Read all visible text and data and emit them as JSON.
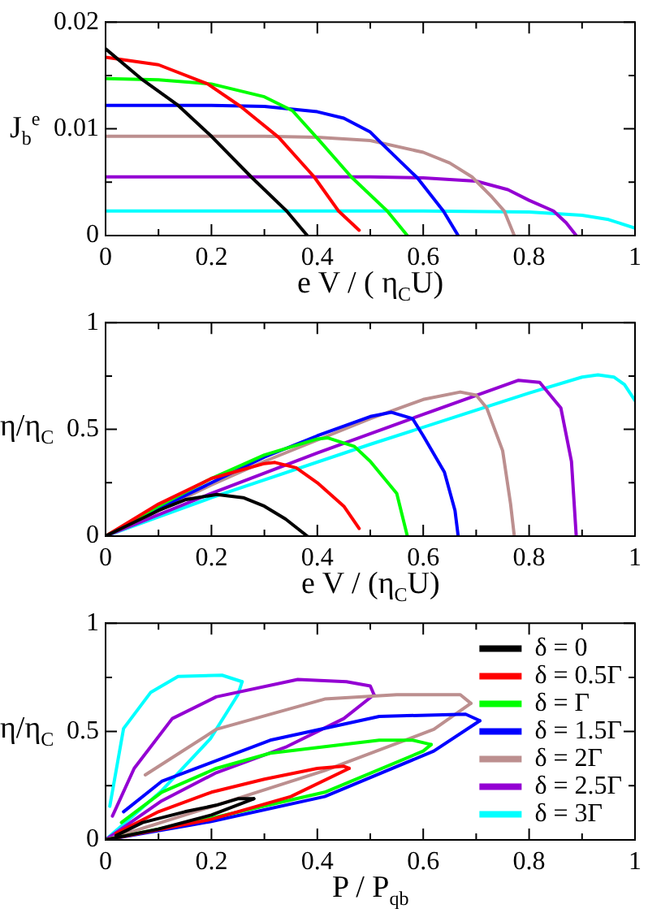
{
  "chart_data": [
    {
      "type": "line",
      "xlabel": "e V / ( η$_{C}$U)",
      "ylabel": "J$_{b}$$^{e}$",
      "xlim": [
        0,
        1
      ],
      "ylim": [
        0,
        0.02
      ],
      "xticks": [
        0,
        {
          "value": 0.1,
          "label": null
        },
        0.2,
        {
          "value": 0.3,
          "label": null
        },
        0.4,
        {
          "value": 0.5,
          "label": null
        },
        0.6,
        {
          "value": 0.7,
          "label": null
        },
        0.8,
        {
          "value": 0.9,
          "label": null
        },
        1
      ],
      "yticks": [
        0,
        {
          "value": 0.005,
          "label": null
        },
        0.01,
        {
          "value": 0.015,
          "label": null
        },
        0.02
      ],
      "grid": false,
      "legend": false,
      "series": [
        {
          "color": "#000000",
          "x": [
            0,
            0.067,
            0.137,
            0.2,
            0.275,
            0.342,
            0.381
          ],
          "values": [
            0.0175,
            0.0147,
            0.0122,
            0.0093,
            0.0055,
            0.0023,
            0
          ]
        },
        {
          "color": "#ff0000",
          "x": [
            0,
            0.1,
            0.193,
            0.255,
            0.327,
            0.394,
            0.44,
            0.479
          ],
          "values": [
            0.0167,
            0.016,
            0.0142,
            0.0121,
            0.0092,
            0.0055,
            0.0023,
            0.0005
          ]
        },
        {
          "color": "#00ff00",
          "x": [
            0,
            0.1,
            0.2,
            0.3,
            0.353,
            0.404,
            0.464,
            0.532,
            0.57
          ],
          "values": [
            0.0147,
            0.0146,
            0.0142,
            0.013,
            0.0117,
            0.0089,
            0.0055,
            0.0023,
            0
          ]
        },
        {
          "color": "#0000ff",
          "x": [
            0,
            0.2,
            0.3,
            0.4,
            0.45,
            0.5,
            0.52,
            0.589,
            0.638,
            0.666
          ],
          "values": [
            0.0122,
            0.0122,
            0.0121,
            0.0116,
            0.011,
            0.0097,
            0.0087,
            0.0054,
            0.0023,
            0
          ]
        },
        {
          "color": "#bc8f8f",
          "x": [
            0,
            0.3,
            0.4,
            0.5,
            0.6,
            0.65,
            0.692,
            0.73,
            0.753,
            0.772
          ],
          "values": [
            0.0093,
            0.0093,
            0.0092,
            0.0089,
            0.0078,
            0.0068,
            0.0055,
            0.0036,
            0.0023,
            0
          ]
        },
        {
          "color": "#9400d3",
          "x": [
            0,
            0.5,
            0.6,
            0.7,
            0.76,
            0.8,
            0.846,
            0.87,
            0.889
          ],
          "values": [
            0.0055,
            0.0055,
            0.0054,
            0.0051,
            0.0043,
            0.0033,
            0.0023,
            0.0012,
            0
          ]
        },
        {
          "color": "#00ffff",
          "x": [
            0,
            0.6,
            0.8,
            0.9,
            0.95,
            1
          ],
          "values": [
            0.0023,
            0.0023,
            0.0022,
            0.0019,
            0.0015,
            0.0007
          ]
        }
      ]
    },
    {
      "type": "line",
      "xlabel": "e V / (η$_{C}$U)",
      "ylabel": "η/η$_{C}$",
      "xlim": [
        0,
        1
      ],
      "ylim": [
        0,
        1
      ],
      "xticks": [
        0,
        {
          "value": 0.1,
          "label": null
        },
        0.2,
        {
          "value": 0.3,
          "label": null
        },
        0.4,
        {
          "value": 0.5,
          "label": null
        },
        0.6,
        {
          "value": 0.7,
          "label": null
        },
        0.8,
        {
          "value": 0.9,
          "label": null
        },
        1
      ],
      "yticks": [
        0,
        {
          "value": 0.25,
          "label": null
        },
        0.5,
        {
          "value": 0.75,
          "label": null
        },
        1
      ],
      "grid": false,
      "legend": false,
      "series": [
        {
          "color": "#000000",
          "x": [
            0,
            0.05,
            0.1,
            0.15,
            0.21,
            0.26,
            0.3,
            0.34,
            0.381
          ],
          "values": [
            0,
            0.06,
            0.12,
            0.17,
            0.195,
            0.18,
            0.14,
            0.08,
            0
          ]
        },
        {
          "color": "#ff0000",
          "x": [
            0,
            0.1,
            0.2,
            0.3,
            0.32,
            0.36,
            0.4,
            0.45,
            0.479
          ],
          "values": [
            0,
            0.15,
            0.27,
            0.34,
            0.345,
            0.32,
            0.25,
            0.14,
            0.036
          ]
        },
        {
          "color": "#00ff00",
          "x": [
            0,
            0.1,
            0.2,
            0.3,
            0.4,
            0.42,
            0.47,
            0.5,
            0.55,
            0.57
          ],
          "values": [
            0,
            0.14,
            0.27,
            0.38,
            0.455,
            0.46,
            0.42,
            0.35,
            0.2,
            0
          ]
        },
        {
          "color": "#0000ff",
          "x": [
            0,
            0.1,
            0.2,
            0.3,
            0.4,
            0.5,
            0.54,
            0.58,
            0.6,
            0.64,
            0.66,
            0.666
          ],
          "values": [
            0,
            0.13,
            0.25,
            0.37,
            0.47,
            0.56,
            0.58,
            0.55,
            0.47,
            0.3,
            0.12,
            0
          ]
        },
        {
          "color": "#bc8f8f",
          "x": [
            0,
            0.1,
            0.2,
            0.3,
            0.4,
            0.5,
            0.6,
            0.67,
            0.7,
            0.72,
            0.75,
            0.765,
            0.772
          ],
          "values": [
            0,
            0.12,
            0.24,
            0.35,
            0.45,
            0.55,
            0.64,
            0.675,
            0.66,
            0.6,
            0.4,
            0.15,
            0
          ]
        },
        {
          "color": "#9400d3",
          "x": [
            0,
            0.2,
            0.4,
            0.6,
            0.78,
            0.82,
            0.86,
            0.88,
            0.889
          ],
          "values": [
            0,
            0.2,
            0.39,
            0.57,
            0.73,
            0.72,
            0.6,
            0.35,
            0
          ]
        },
        {
          "color": "#00ffff",
          "x": [
            0,
            0.2,
            0.5,
            0.8,
            0.9,
            0.93,
            0.96,
            0.98,
            1
          ],
          "values": [
            0,
            0.18,
            0.43,
            0.67,
            0.745,
            0.755,
            0.745,
            0.71,
            0.635
          ]
        }
      ]
    },
    {
      "type": "line",
      "xlabel": "P / P$_{qb}$",
      "ylabel": "η/η$_{C}$",
      "xlim": [
        0,
        1
      ],
      "ylim": [
        0,
        1
      ],
      "xticks": [
        0,
        {
          "value": 0.1,
          "label": null
        },
        0.2,
        {
          "value": 0.3,
          "label": null
        },
        0.4,
        {
          "value": 0.5,
          "label": null
        },
        0.6,
        {
          "value": 0.7,
          "label": null
        },
        0.8,
        {
          "value": 0.9,
          "label": null
        },
        1
      ],
      "yticks": [
        0,
        {
          "value": 0.25,
          "label": null
        },
        0.5,
        {
          "value": 0.75,
          "label": null
        },
        1
      ],
      "grid": false,
      "legend": "right",
      "series": [
        {
          "name": "δ = 0",
          "color": "#000000",
          "x": [
            0,
            0.1,
            0.2,
            0.28
          ],
          "values": [
            0,
            0.05,
            0.115,
            0.19
          ]
        },
        {
          "color": "#000000",
          "x": [
            0.02,
            0.07,
            0.15,
            0.209,
            0.25,
            0.28
          ],
          "values": [
            0.02,
            0.08,
            0.13,
            0.16,
            0.19,
            0.19
          ]
        },
        {
          "name": "δ = 0.5Γ",
          "color": "#ff0000",
          "x": [
            0,
            0.2,
            0.35,
            0.46
          ],
          "values": [
            0,
            0.095,
            0.2,
            0.33
          ]
        },
        {
          "color": "#ff0000",
          "x": [
            0.02,
            0.1,
            0.2,
            0.3,
            0.4,
            0.45,
            0.46
          ],
          "values": [
            0.03,
            0.13,
            0.22,
            0.28,
            0.33,
            0.34,
            0.33
          ]
        },
        {
          "name": "δ = Γ",
          "color": "#00ff00",
          "x": [
            0,
            0.2,
            0.414,
            0.6,
            0.615
          ],
          "values": [
            0,
            0.1,
            0.22,
            0.41,
            0.44
          ]
        },
        {
          "color": "#00ff00",
          "x": [
            0.03,
            0.106,
            0.209,
            0.311,
            0.517,
            0.58,
            0.615
          ],
          "values": [
            0.08,
            0.22,
            0.33,
            0.4,
            0.46,
            0.46,
            0.44
          ]
        },
        {
          "name": "δ = 1.5Γ",
          "color": "#0000ff",
          "x": [
            0,
            0.2,
            0.414,
            0.62,
            0.707
          ],
          "values": [
            0,
            0.085,
            0.2,
            0.41,
            0.55
          ]
        },
        {
          "color": "#0000ff",
          "x": [
            0.034,
            0.106,
            0.311,
            0.517,
            0.68,
            0.707
          ],
          "values": [
            0.13,
            0.27,
            0.46,
            0.57,
            0.58,
            0.55
          ]
        },
        {
          "name": "δ = 2Γ",
          "color": "#bc8f8f",
          "x": [
            0,
            0.209,
            0.414,
            0.62,
            0.69
          ],
          "values": [
            0,
            0.16,
            0.32,
            0.51,
            0.63
          ]
        },
        {
          "color": "#bc8f8f",
          "x": [
            0.075,
            0.209,
            0.414,
            0.55,
            0.67,
            0.69
          ],
          "values": [
            0.3,
            0.51,
            0.65,
            0.67,
            0.67,
            0.63
          ]
        },
        {
          "name": "δ = 2.5Γ",
          "color": "#9400d3",
          "x": [
            0,
            0.106,
            0.209,
            0.342,
            0.45,
            0.507
          ],
          "values": [
            0,
            0.18,
            0.31,
            0.43,
            0.56,
            0.67
          ]
        },
        {
          "color": "#9400d3",
          "x": [
            0.013,
            0.054,
            0.126,
            0.209,
            0.363,
            0.455,
            0.5,
            0.507
          ],
          "values": [
            0.11,
            0.33,
            0.56,
            0.66,
            0.74,
            0.73,
            0.71,
            0.67
          ]
        },
        {
          "name": "δ = 3Γ",
          "color": "#00ffff",
          "x": [
            0,
            0.106,
            0.198,
            0.25,
            0.258
          ],
          "values": [
            0,
            0.227,
            0.467,
            0.67,
            0.73
          ]
        },
        {
          "color": "#00ffff",
          "x": [
            0.008,
            0.034,
            0.085,
            0.137,
            0.22,
            0.258
          ],
          "values": [
            0.155,
            0.514,
            0.68,
            0.754,
            0.76,
            0.73
          ]
        }
      ]
    }
  ]
}
